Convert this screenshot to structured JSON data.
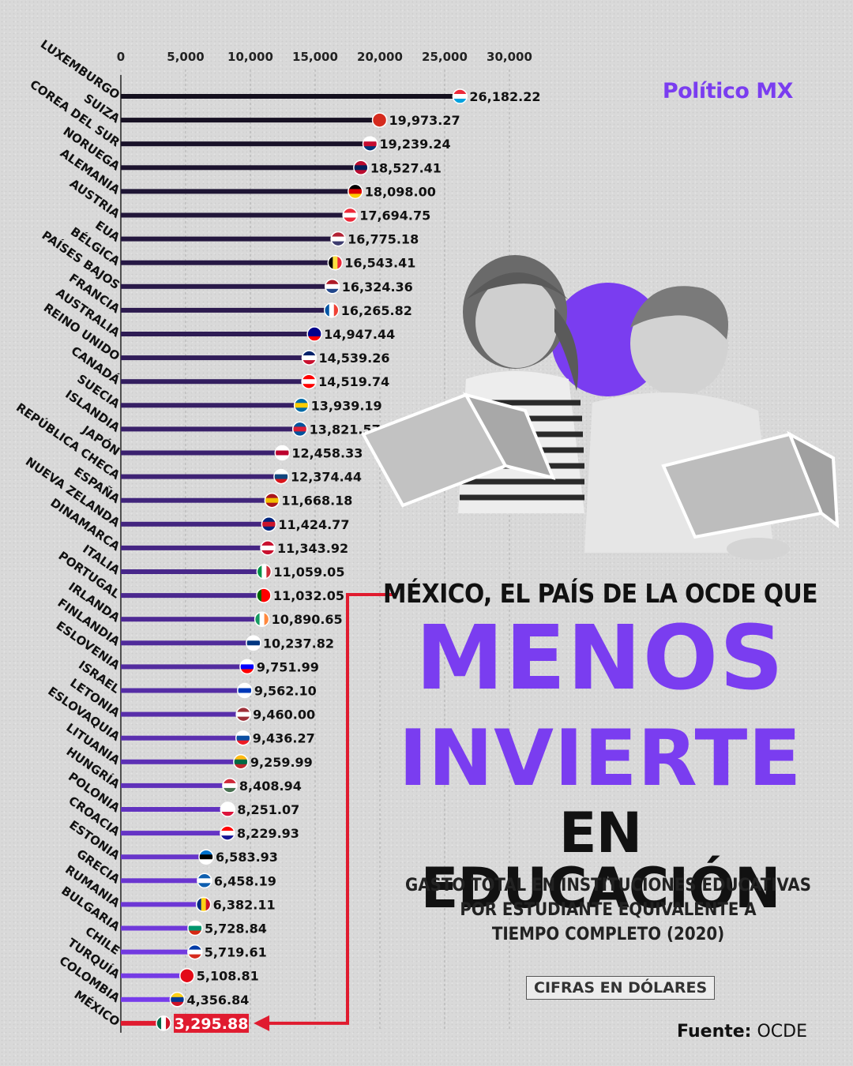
{
  "brand": "Político MX",
  "headline": {
    "line1": "MÉXICO, EL PAÍS DE LA OCDE QUE",
    "line2": "MENOS",
    "line3": "INVIERTE",
    "line4": "EN EDUCACIÓN"
  },
  "subtitle": {
    "line1": "GASTO TOTAL EN INSTITUCIONES EDUCATIVAS",
    "line2": "POR ESTUDIANTE EQUIVALENTE A",
    "line3": "TIEMPO COMPLETO (2020)"
  },
  "units_badge": "CIFRAS EN DÓLARES",
  "source_label": "Fuente:",
  "source_value": "OCDE",
  "colors": {
    "purple": "#7a3df0",
    "dark_bar": "#111111",
    "highlight_red": "#e01b2f"
  },
  "chart_data": {
    "type": "bar",
    "orientation": "horizontal",
    "title": "",
    "xlim": [
      0,
      30000
    ],
    "xticks": [
      "0",
      "5,000",
      "10,000",
      "15,000",
      "20,000",
      "25,000",
      "30,000"
    ],
    "xtick_values": [
      0,
      5000,
      10000,
      15000,
      20000,
      25000,
      30000
    ],
    "grid": true,
    "categories": [
      "LUXEMBURGO",
      "SUIZA",
      "COREA DEL SUR",
      "NORUEGA",
      "ALEMANIA",
      "AUSTRIA",
      "EUA",
      "BÉLGICA",
      "PAÍSES BAJOS",
      "FRANCIA",
      "AUSTRALIA",
      "REINO UNIDO",
      "CANADÁ",
      "SUECIA",
      "ISLANDIA",
      "JAPÓN",
      "REPÚBLICA CHECA",
      "ESPAÑA",
      "NUEVA ZELANDA",
      "DINAMARCA",
      "ITALIA",
      "PORTUGAL",
      "IRLANDA",
      "FINLANDIA",
      "ESLOVENIA",
      "ISRAEL",
      "LETONIA",
      "ESLOVAQUIA",
      "LITUANIA",
      "HUNGRÍA",
      "POLONIA",
      "CROACIA",
      "ESTONIA",
      "GRECIA",
      "RUMANIA",
      "BULGARIA",
      "CHILE",
      "TURQUÍA",
      "COLOMBIA",
      "MÉXICO"
    ],
    "values": [
      26182.22,
      19973.27,
      19239.24,
      18527.41,
      18098.0,
      17694.75,
      16775.18,
      16543.41,
      16324.36,
      16265.82,
      14947.44,
      14539.26,
      14519.74,
      13939.19,
      13821.57,
      12458.33,
      12374.44,
      11668.18,
      11424.77,
      11343.92,
      11059.05,
      11032.05,
      10890.65,
      10237.82,
      9751.99,
      9562.1,
      9460.0,
      9436.27,
      9259.99,
      8408.94,
      8251.07,
      8229.93,
      6583.93,
      6458.19,
      6382.11,
      5728.84,
      5719.61,
      5108.81,
      4356.84,
      3295.88
    ],
    "labels": [
      "26,182.22",
      "19,973.27",
      "19,239.24",
      "18,527.41",
      "18,098.00",
      "17,694.75",
      "16,775.18",
      "16,543.41",
      "16,324.36",
      "16,265.82",
      "14,947.44",
      "14,539.26",
      "14,519.74",
      "13,939.19",
      "13,821.57",
      "12,458.33",
      "12,374.44",
      "11,668.18",
      "11,424.77",
      "11,343.92",
      "11,059.05",
      "11,032.05",
      "10,890.65",
      "10,237.82",
      "9,751.99",
      "9,562.10",
      "9,460.00",
      "9,436.27",
      "9,259.99",
      "8,408.94",
      "8,251.07",
      "8,229.93",
      "6,583.93",
      "6,458.19",
      "6,382.11",
      "5,728.84",
      "5,719.61",
      "5,108.81",
      "4,356.84",
      "3,295.88"
    ],
    "flags": [
      "lu",
      "ch",
      "kr",
      "no",
      "de",
      "at",
      "us",
      "be",
      "nl",
      "fr",
      "au",
      "gb",
      "ca",
      "se",
      "is",
      "jp",
      "cz",
      "es",
      "nz",
      "dk",
      "it",
      "pt",
      "ie",
      "fi",
      "si",
      "il",
      "lv",
      "sk",
      "lt",
      "hu",
      "pl",
      "hr",
      "ee",
      "gr",
      "ro",
      "bg",
      "cl",
      "tr",
      "co",
      "mx"
    ],
    "highlight": "MÉXICO"
  }
}
